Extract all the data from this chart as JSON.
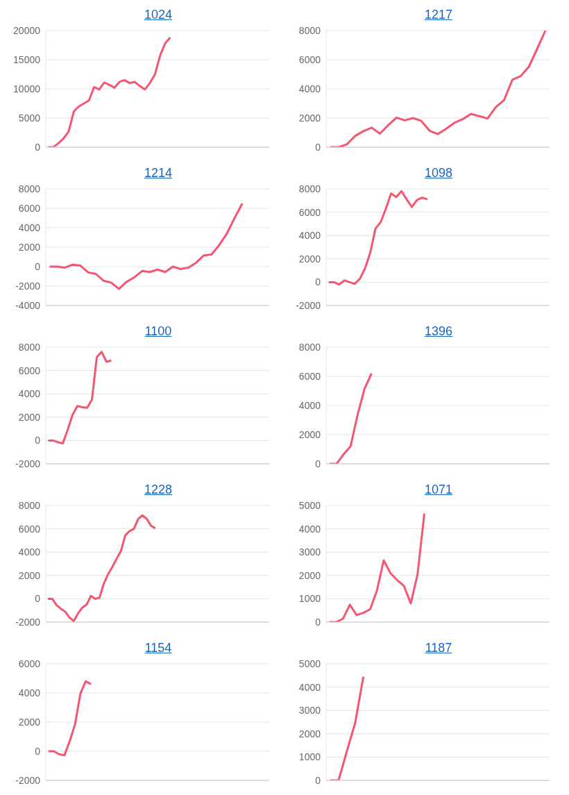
{
  "chart_data": [
    {
      "type": "line",
      "title": "1024",
      "categories": [
        null,
        null,
        null,
        null,
        null,
        null,
        null,
        null,
        null,
        null,
        null,
        null,
        null,
        null,
        null,
        null,
        null,
        null,
        null,
        null,
        null,
        null,
        null,
        null,
        null,
        null,
        null,
        null,
        null,
        null,
        null,
        null,
        null,
        null,
        null,
        null,
        null,
        null,
        null,
        null,
        null,
        null,
        null,
        null
      ],
      "series": [
        {
          "color": "#f4566f",
          "values": [
            0,
            0,
            700,
            1500,
            2700,
            6100,
            7000,
            7500,
            8000,
            10300,
            9900,
            11100,
            10700,
            10200,
            11200,
            11500,
            11000,
            11200,
            10500,
            9900,
            11000,
            12500,
            15700,
            17800,
            18800,
            null,
            null,
            null,
            null,
            null,
            null,
            null,
            null,
            null,
            null,
            null,
            null,
            null,
            null,
            null,
            null,
            null,
            null,
            null
          ]
        }
      ],
      "ylim": [
        0,
        20000
      ],
      "yticks": [
        0,
        5000,
        10000,
        15000,
        20000
      ],
      "grid": "y",
      "tick_labels": "y",
      "marker": "none"
    },
    {
      "type": "line",
      "title": "1217",
      "categories": [
        null,
        null,
        null,
        null,
        null,
        null,
        null,
        null,
        null,
        null,
        null,
        null,
        null,
        null,
        null,
        null,
        null,
        null,
        null,
        null,
        null,
        null,
        null,
        null,
        null,
        null,
        null
      ],
      "series": [
        {
          "color": "#f4566f",
          "values": [
            0,
            0,
            200,
            770,
            1100,
            1340,
            930,
            1510,
            2030,
            1840,
            2000,
            1800,
            1130,
            900,
            1260,
            1670,
            1920,
            2280,
            2130,
            1970,
            2740,
            3230,
            4620,
            4870,
            5520,
            6750,
            8000
          ]
        }
      ],
      "ylim": [
        0,
        8000
      ],
      "yticks": [
        0,
        2000,
        4000,
        6000,
        8000
      ],
      "grid": "y",
      "tick_labels": "y",
      "marker": "none"
    },
    {
      "type": "line",
      "title": "1214",
      "categories": [
        null,
        null,
        null,
        null,
        null,
        null,
        null,
        null,
        null,
        null,
        null,
        null,
        null,
        null,
        null,
        null,
        null,
        null,
        null,
        null,
        null,
        null,
        null,
        null,
        null,
        null,
        null,
        null,
        null
      ],
      "series": [
        {
          "color": "#f4566f",
          "values": [
            0,
            0,
            -100,
            200,
            100,
            -600,
            -750,
            -1450,
            -1650,
            -2300,
            -1550,
            -1100,
            -450,
            -550,
            -300,
            -550,
            0,
            -250,
            -100,
            400,
            1150,
            1250,
            2200,
            3400,
            5000,
            6500,
            null,
            null,
            null
          ]
        }
      ],
      "ylim": [
        -4000,
        8000
      ],
      "yticks": [
        -4000,
        -2000,
        0,
        2000,
        4000,
        6000,
        8000
      ],
      "grid": "y",
      "tick_labels": "y",
      "marker": "none"
    },
    {
      "type": "line",
      "title": "1098",
      "categories": [
        null,
        null,
        null,
        null,
        null,
        null,
        null,
        null,
        null,
        null,
        null,
        null,
        null,
        null,
        null,
        null,
        null,
        null,
        null,
        null,
        null,
        null,
        null,
        null,
        null,
        null,
        null,
        null,
        null,
        null,
        null,
        null,
        null,
        null,
        null,
        null,
        null,
        null,
        null,
        null,
        null,
        null,
        null
      ],
      "series": [
        {
          "color": "#f4566f",
          "values": [
            0,
            0,
            -200,
            150,
            0,
            -150,
            300,
            1200,
            2550,
            4600,
            5150,
            6300,
            7600,
            7300,
            7800,
            7100,
            6450,
            7050,
            7250,
            7100,
            null,
            null,
            null,
            null,
            null,
            null,
            null,
            null,
            null,
            null,
            null,
            null,
            null,
            null,
            null,
            null,
            null,
            null,
            null,
            null,
            null,
            null,
            null
          ]
        }
      ],
      "ylim": [
        -2000,
        8000
      ],
      "yticks": [
        -2000,
        0,
        2000,
        4000,
        6000,
        8000
      ],
      "grid": "y",
      "tick_labels": "y",
      "marker": "none"
    },
    {
      "type": "line",
      "title": "1100",
      "categories": [
        null,
        null,
        null,
        null,
        null,
        null,
        null,
        null,
        null,
        null,
        null,
        null,
        null,
        null,
        null,
        null,
        null,
        null,
        null,
        null,
        null,
        null,
        null,
        null,
        null,
        null,
        null,
        null,
        null,
        null,
        null,
        null,
        null,
        null,
        null,
        null,
        null,
        null,
        null,
        null,
        null,
        null,
        null,
        null,
        null,
        null
      ],
      "series": [
        {
          "color": "#f4566f",
          "values": [
            0,
            0,
            -150,
            -250,
            900,
            2200,
            2950,
            2850,
            2800,
            3500,
            7150,
            7600,
            6750,
            6850,
            null,
            null,
            null,
            null,
            null,
            null,
            null,
            null,
            null,
            null,
            null,
            null,
            null,
            null,
            null,
            null,
            null,
            null,
            null,
            null,
            null,
            null,
            null,
            null,
            null,
            null,
            null,
            null,
            null,
            null,
            null,
            null
          ]
        }
      ],
      "ylim": [
        -2000,
        8000
      ],
      "yticks": [
        -2000,
        0,
        2000,
        4000,
        6000,
        8000
      ],
      "grid": "y",
      "tick_labels": "y",
      "marker": "none"
    },
    {
      "type": "line",
      "title": "1396",
      "categories": [
        null,
        null,
        null,
        null,
        null,
        null,
        null,
        null,
        null,
        null,
        null,
        null,
        null,
        null,
        null,
        null,
        null,
        null,
        null,
        null,
        null,
        null,
        null,
        null,
        null,
        null,
        null,
        null,
        null,
        null,
        null,
        null
      ],
      "series": [
        {
          "color": "#f4566f",
          "values": [
            0,
            0,
            650,
            1200,
            3350,
            5150,
            6200,
            null,
            null,
            null,
            null,
            null,
            null,
            null,
            null,
            null,
            null,
            null,
            null,
            null,
            null,
            null,
            null,
            null,
            null,
            null,
            null,
            null,
            null,
            null,
            null,
            null
          ]
        }
      ],
      "ylim": [
        0,
        8000
      ],
      "yticks": [
        0,
        2000,
        4000,
        6000,
        8000
      ],
      "grid": "y",
      "tick_labels": "y",
      "marker": "none"
    },
    {
      "type": "line",
      "title": "1228",
      "categories": [
        null,
        null,
        null,
        null,
        null,
        null,
        null,
        null,
        null,
        null,
        null,
        null,
        null,
        null,
        null,
        null,
        null,
        null,
        null,
        null,
        null,
        null,
        null,
        null,
        null,
        null,
        null,
        null,
        null,
        null,
        null,
        null,
        null,
        null,
        null,
        null,
        null,
        null,
        null,
        null,
        null,
        null,
        null,
        null,
        null,
        null,
        null,
        null,
        null,
        null,
        null,
        null
      ],
      "series": [
        {
          "color": "#f4566f",
          "values": [
            0,
            0,
            -550,
            -850,
            -1100,
            -1600,
            -1900,
            -1250,
            -750,
            -500,
            250,
            0,
            100,
            1300,
            2100,
            2750,
            3450,
            4100,
            5450,
            5800,
            6000,
            6850,
            7150,
            6850,
            6250,
            6050,
            null,
            null,
            null,
            null,
            null,
            null,
            null,
            null,
            null,
            null,
            null,
            null,
            null,
            null,
            null,
            null,
            null,
            null,
            null,
            null,
            null,
            null,
            null,
            null,
            null,
            null
          ]
        }
      ],
      "ylim": [
        -2000,
        8000
      ],
      "yticks": [
        -2000,
        0,
        2000,
        4000,
        6000,
        8000
      ],
      "grid": "y",
      "tick_labels": "y",
      "marker": "none"
    },
    {
      "type": "line",
      "title": "1071",
      "categories": [
        null,
        null,
        null,
        null,
        null,
        null,
        null,
        null,
        null,
        null,
        null,
        null,
        null,
        null,
        null,
        null,
        null,
        null,
        null,
        null,
        null,
        null,
        null,
        null,
        null,
        null,
        null,
        null,
        null,
        null,
        null,
        null,
        null
      ],
      "series": [
        {
          "color": "#f4566f",
          "values": [
            0,
            0,
            150,
            750,
            300,
            400,
            550,
            1350,
            2650,
            2100,
            1800,
            1550,
            800,
            2050,
            4650,
            null,
            null,
            null,
            null,
            null,
            null,
            null,
            null,
            null,
            null,
            null,
            null,
            null,
            null,
            null,
            null,
            null,
            null
          ]
        }
      ],
      "ylim": [
        0,
        5000
      ],
      "yticks": [
        0,
        1000,
        2000,
        3000,
        4000,
        5000
      ],
      "grid": "y",
      "tick_labels": "y",
      "marker": "none"
    },
    {
      "type": "line",
      "title": "1154",
      "categories": [
        null,
        null,
        null,
        null,
        null,
        null,
        null,
        null,
        null,
        null,
        null,
        null,
        null,
        null,
        null,
        null,
        null,
        null,
        null,
        null,
        null,
        null,
        null,
        null,
        null,
        null,
        null,
        null,
        null,
        null,
        null,
        null,
        null,
        null,
        null,
        null,
        null,
        null,
        null,
        null,
        null,
        null
      ],
      "series": [
        {
          "color": "#f4566f",
          "values": [
            0,
            0,
            -200,
            -280,
            700,
            1850,
            3950,
            4800,
            4600,
            null,
            null,
            null,
            null,
            null,
            null,
            null,
            null,
            null,
            null,
            null,
            null,
            null,
            null,
            null,
            null,
            null,
            null,
            null,
            null,
            null,
            null,
            null,
            null,
            null,
            null,
            null,
            null,
            null,
            null,
            null,
            null,
            null
          ]
        }
      ],
      "ylim": [
        -2000,
        6000
      ],
      "yticks": [
        -2000,
        0,
        2000,
        4000,
        6000
      ],
      "grid": "y",
      "tick_labels": "y",
      "marker": "none"
    },
    {
      "type": "line",
      "title": "1187",
      "categories": [
        null,
        null,
        null,
        null,
        null,
        null,
        null,
        null,
        null,
        null,
        null,
        null,
        null,
        null,
        null,
        null,
        null,
        null,
        null,
        null,
        null,
        null,
        null,
        null,
        null,
        null,
        null
      ],
      "series": [
        {
          "color": "#f4566f",
          "values": [
            0,
            0,
            1250,
            2450,
            4450,
            null,
            null,
            null,
            null,
            null,
            null,
            null,
            null,
            null,
            null,
            null,
            null,
            null,
            null,
            null,
            null,
            null,
            null,
            null,
            null,
            null,
            null
          ]
        }
      ],
      "ylim": [
        0,
        5000
      ],
      "yticks": [
        0,
        1000,
        2000,
        3000,
        4000,
        5000
      ],
      "grid": "y",
      "tick_labels": "y",
      "marker": "none"
    }
  ]
}
